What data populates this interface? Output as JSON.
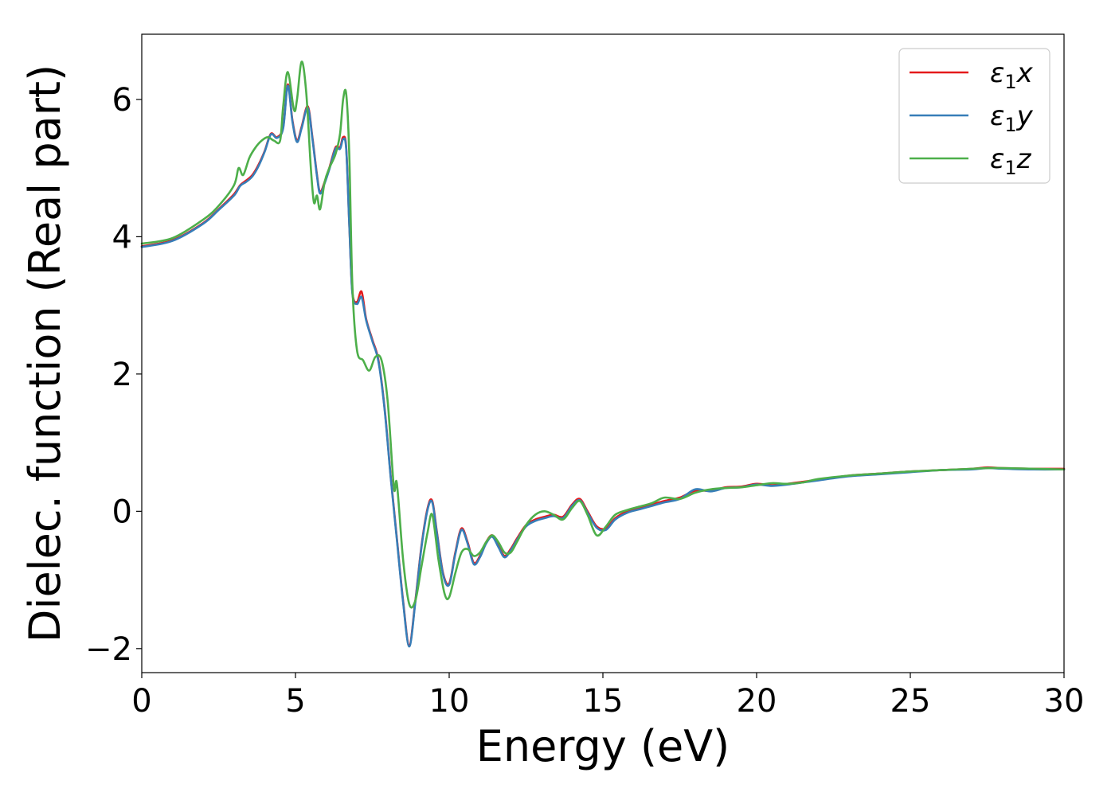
{
  "chart_data": {
    "type": "line",
    "title": "",
    "xlabel": "Energy (eV)",
    "ylabel": "Dielec. function (Real part)",
    "xlim": [
      0,
      30
    ],
    "ylim": [
      -2.35,
      6.95
    ],
    "xticks": [
      0,
      5,
      10,
      15,
      20,
      25,
      30
    ],
    "xtick_labels": [
      "0",
      "5",
      "10",
      "15",
      "20",
      "25",
      "30"
    ],
    "yticks": [
      -2,
      0,
      2,
      4,
      6
    ],
    "ytick_labels": [
      "−2",
      "0",
      "2",
      "4",
      "6"
    ],
    "grid": false,
    "legend": {
      "position": "upper-right",
      "entries": [
        {
          "series": "ε₁x",
          "symbol": "ε",
          "subscript": "1",
          "component": "x"
        },
        {
          "series": "ε₁y",
          "symbol": "ε",
          "subscript": "1",
          "component": "y"
        },
        {
          "series": "ε₁z",
          "symbol": "ε",
          "subscript": "1",
          "component": "z"
        }
      ]
    },
    "series": [
      {
        "name": "ε₁x",
        "color": "#e41a1c",
        "x": [
          0,
          1,
          2,
          2.5,
          3,
          3.2,
          3.4,
          3.6,
          3.8,
          4.0,
          4.2,
          4.4,
          4.6,
          4.75,
          4.9,
          5.05,
          5.2,
          5.4,
          5.55,
          5.7,
          5.8,
          5.95,
          6.1,
          6.3,
          6.45,
          6.55,
          6.65,
          6.75,
          6.85,
          7.0,
          7.15,
          7.3,
          7.5,
          7.7,
          7.9,
          8.1,
          8.3,
          8.5,
          8.7,
          8.9,
          9.1,
          9.3,
          9.45,
          9.6,
          9.8,
          10.0,
          10.2,
          10.4,
          10.6,
          10.8,
          11.0,
          11.2,
          11.4,
          11.6,
          11.8,
          12.0,
          12.2,
          12.5,
          12.8,
          13.1,
          13.4,
          13.7,
          14.0,
          14.25,
          14.5,
          14.8,
          15.1,
          15.4,
          15.8,
          16.2,
          16.6,
          17.0,
          17.5,
          18.0,
          18.5,
          19.0,
          19.5,
          20.0,
          20.5,
          21.0,
          21.5,
          22.0,
          23.0,
          24.0,
          25.0,
          26.0,
          27.0,
          27.5,
          28.0,
          29.0,
          30.0
        ],
        "y": [
          3.86,
          3.95,
          4.2,
          4.4,
          4.62,
          4.75,
          4.82,
          4.9,
          5.05,
          5.25,
          5.5,
          5.45,
          5.6,
          6.22,
          5.7,
          5.4,
          5.6,
          5.9,
          5.45,
          4.9,
          4.65,
          4.8,
          5.0,
          5.3,
          5.3,
          5.45,
          5.3,
          4.2,
          3.2,
          3.05,
          3.2,
          2.8,
          2.5,
          2.2,
          1.5,
          0.5,
          -0.4,
          -1.3,
          -1.95,
          -1.3,
          -0.5,
          0.05,
          0.15,
          -0.3,
          -0.9,
          -1.05,
          -0.6,
          -0.25,
          -0.45,
          -0.75,
          -0.65,
          -0.45,
          -0.35,
          -0.5,
          -0.65,
          -0.55,
          -0.4,
          -0.2,
          -0.12,
          -0.08,
          -0.05,
          -0.08,
          0.1,
          0.18,
          0.0,
          -0.22,
          -0.25,
          -0.1,
          0.0,
          0.05,
          0.1,
          0.15,
          0.2,
          0.3,
          0.3,
          0.35,
          0.36,
          0.4,
          0.38,
          0.4,
          0.43,
          0.46,
          0.52,
          0.55,
          0.58,
          0.6,
          0.62,
          0.64,
          0.63,
          0.62,
          0.62
        ]
      },
      {
        "name": "ε₁y",
        "color": "#377eb8",
        "x": [
          0,
          1,
          2,
          2.5,
          3,
          3.2,
          3.4,
          3.6,
          3.8,
          4.0,
          4.2,
          4.4,
          4.6,
          4.75,
          4.9,
          5.05,
          5.2,
          5.4,
          5.55,
          5.7,
          5.8,
          5.95,
          6.1,
          6.3,
          6.45,
          6.55,
          6.65,
          6.75,
          6.85,
          7.0,
          7.15,
          7.3,
          7.5,
          7.7,
          7.9,
          8.1,
          8.3,
          8.5,
          8.7,
          8.9,
          9.1,
          9.3,
          9.45,
          9.6,
          9.8,
          10.0,
          10.2,
          10.4,
          10.6,
          10.8,
          11.0,
          11.2,
          11.4,
          11.6,
          11.8,
          12.0,
          12.2,
          12.5,
          12.8,
          13.1,
          13.4,
          13.7,
          14.0,
          14.25,
          14.5,
          14.8,
          15.1,
          15.4,
          15.8,
          16.2,
          16.6,
          17.0,
          17.5,
          18.0,
          18.5,
          19.0,
          19.5,
          20.0,
          20.5,
          21.0,
          21.5,
          22.0,
          23.0,
          24.0,
          25.0,
          26.0,
          27.0,
          27.5,
          28.0,
          29.0,
          30.0
        ],
        "y": [
          3.85,
          3.94,
          4.19,
          4.39,
          4.6,
          4.74,
          4.8,
          4.88,
          5.03,
          5.24,
          5.49,
          5.44,
          5.58,
          6.2,
          5.68,
          5.38,
          5.58,
          5.88,
          5.43,
          4.88,
          4.63,
          4.78,
          4.98,
          5.28,
          5.28,
          5.42,
          5.28,
          4.18,
          3.18,
          3.02,
          3.12,
          2.78,
          2.48,
          2.18,
          1.48,
          0.48,
          -0.42,
          -1.32,
          -1.97,
          -1.32,
          -0.52,
          0.03,
          0.13,
          -0.32,
          -0.92,
          -1.07,
          -0.62,
          -0.27,
          -0.47,
          -0.77,
          -0.67,
          -0.47,
          -0.37,
          -0.52,
          -0.67,
          -0.57,
          -0.42,
          -0.22,
          -0.14,
          -0.1,
          -0.07,
          -0.1,
          0.08,
          0.16,
          -0.02,
          -0.24,
          -0.27,
          -0.12,
          -0.02,
          0.03,
          0.08,
          0.13,
          0.18,
          0.32,
          0.29,
          0.34,
          0.35,
          0.39,
          0.37,
          0.39,
          0.42,
          0.45,
          0.51,
          0.54,
          0.57,
          0.6,
          0.61,
          0.63,
          0.62,
          0.61,
          0.61
        ]
      },
      {
        "name": "ε₁z",
        "color": "#4daf4a",
        "x": [
          0,
          1,
          2,
          2.5,
          3,
          3.15,
          3.3,
          3.5,
          3.7,
          3.9,
          4.1,
          4.3,
          4.5,
          4.6,
          4.75,
          4.95,
          5.05,
          5.2,
          5.35,
          5.5,
          5.6,
          5.7,
          5.8,
          5.95,
          6.1,
          6.3,
          6.45,
          6.55,
          6.65,
          6.75,
          6.85,
          7.0,
          7.2,
          7.4,
          7.6,
          7.8,
          8.0,
          8.2,
          8.3,
          8.5,
          8.7,
          8.9,
          9.1,
          9.3,
          9.45,
          9.65,
          9.85,
          10.0,
          10.2,
          10.4,
          10.6,
          10.8,
          11.0,
          11.2,
          11.4,
          11.6,
          11.8,
          12.0,
          12.2,
          12.5,
          12.8,
          13.1,
          13.4,
          13.7,
          14.0,
          14.25,
          14.5,
          14.8,
          15.1,
          15.4,
          15.8,
          16.2,
          16.6,
          17.0,
          17.5,
          18.0,
          18.5,
          19.0,
          19.5,
          20.0,
          20.5,
          21.0,
          21.5,
          22.0,
          23.0,
          24.0,
          25.0,
          26.0,
          27.0,
          27.5,
          28.0,
          29.0,
          30.0
        ],
        "y": [
          3.9,
          3.98,
          4.25,
          4.45,
          4.75,
          5.0,
          4.9,
          5.15,
          5.3,
          5.4,
          5.45,
          5.4,
          5.4,
          5.9,
          6.4,
          5.85,
          6.0,
          6.55,
          6.1,
          5.0,
          4.5,
          4.6,
          4.4,
          4.8,
          5.0,
          5.2,
          5.5,
          6.0,
          6.08,
          5.2,
          3.3,
          2.35,
          2.2,
          2.05,
          2.25,
          2.2,
          1.6,
          0.35,
          0.4,
          -0.7,
          -1.35,
          -1.3,
          -0.8,
          -0.3,
          -0.05,
          -0.7,
          -1.2,
          -1.25,
          -0.9,
          -0.6,
          -0.55,
          -0.65,
          -0.6,
          -0.45,
          -0.35,
          -0.45,
          -0.6,
          -0.6,
          -0.45,
          -0.2,
          -0.05,
          0.0,
          -0.05,
          -0.12,
          0.05,
          0.15,
          -0.05,
          -0.35,
          -0.22,
          -0.05,
          0.02,
          0.07,
          0.12,
          0.2,
          0.18,
          0.27,
          0.32,
          0.34,
          0.35,
          0.38,
          0.41,
          0.4,
          0.42,
          0.47,
          0.52,
          0.55,
          0.58,
          0.6,
          0.62,
          0.63,
          0.63,
          0.62,
          0.61
        ]
      }
    ]
  }
}
